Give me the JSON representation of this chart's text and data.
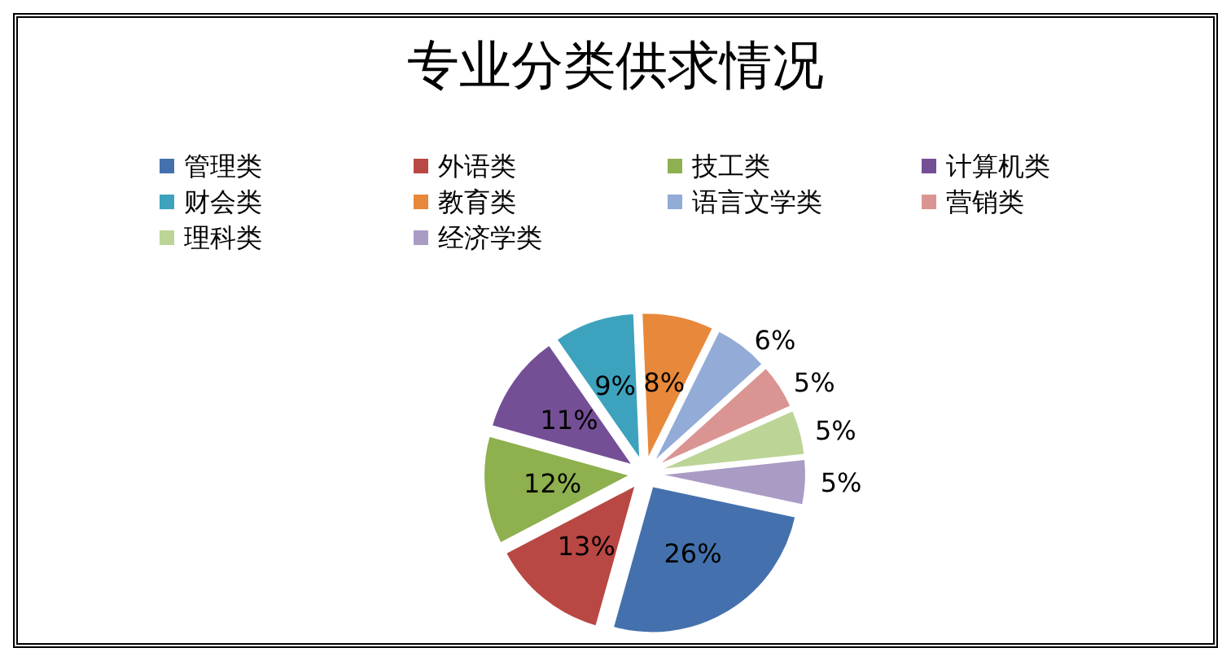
{
  "chart_data": {
    "type": "pie",
    "title": "专业分类供求情况",
    "categories": [
      "管理类",
      "外语类",
      "技工类",
      "计算机类",
      "财会类",
      "教育类",
      "语言文学类",
      "营销类",
      "理科类",
      "经济学类"
    ],
    "values": [
      26,
      13,
      12,
      11,
      9,
      8,
      6,
      5,
      5,
      5
    ],
    "value_labels": [
      "26%",
      "13%",
      "12%",
      "11%",
      "9%",
      "8%",
      "6%",
      "5%",
      "5%",
      "5%"
    ],
    "colors": [
      "#4471ad",
      "#b94743",
      "#8eb04e",
      "#744f96",
      "#3da2bd",
      "#e8883a",
      "#93abd7",
      "#da9593",
      "#bcd597",
      "#aa9bc5"
    ],
    "legend": "top"
  }
}
